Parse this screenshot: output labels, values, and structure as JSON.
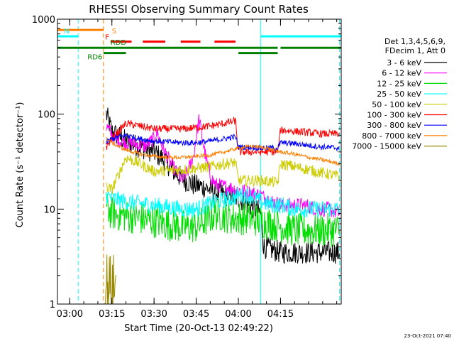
{
  "chart_data": {
    "type": "line",
    "title": "RHESSI Observing Summary Count Rates",
    "xlabel": "Start Time (20-Oct-13 02:49:22)",
    "ylabel": "Count Rate (s⁻¹ detector⁻¹)",
    "yscale": "log",
    "ylim": [
      1,
      1000
    ],
    "xlim_minutes": [
      -4.37,
      96.6
    ],
    "x_tick_labels": [
      "03:00",
      "03:15",
      "03:30",
      "03:45",
      "04:00",
      "04:15"
    ],
    "x_tick_minutes": [
      0,
      15,
      30,
      45,
      60,
      75
    ],
    "y_tick_labels": [
      "1",
      "10",
      "100",
      "1000"
    ],
    "y_tick_values": [
      1,
      10,
      100,
      1000
    ],
    "timestamp": "23-Oct-2021 07:40",
    "legend": {
      "header": [
        "Det 1,3,4,5,6,9,",
        "FDecim 1, Att 0"
      ],
      "entries": [
        {
          "label": "3 - 6 keV",
          "color": "#000000"
        },
        {
          "label": "6 - 12 keV",
          "color": "#ff00ff"
        },
        {
          "label": "12 - 25 keV",
          "color": "#00dd00"
        },
        {
          "label": "25 - 50 keV",
          "color": "#00ffff"
        },
        {
          "label": "50 - 100 keV",
          "color": "#cccc00"
        },
        {
          "label": "100 - 300 keV",
          "color": "#ff0000"
        },
        {
          "label": "300 - 800 keV",
          "color": "#0000ff"
        },
        {
          "label": "800 - 7000 keV",
          "color": "#ff8000"
        },
        {
          "label": "7000 - 15000 keV",
          "color": "#998800"
        }
      ]
    },
    "flag_bars": [
      {
        "label": "S",
        "color": "#ff8000",
        "value": 770,
        "segments": [
          [
            -4.37,
            12
          ]
        ]
      },
      {
        "label": "N",
        "color": "#00ffff",
        "value": 660,
        "segments": [
          [
            -4.37,
            3
          ],
          [
            68,
            96.6
          ]
        ]
      },
      {
        "label": "F",
        "color": "#ff0000",
        "value": 580,
        "segments": [
          [
            14.5,
            22
          ],
          [
            26,
            34
          ],
          [
            39.5,
            46.5
          ],
          [
            51.5,
            59
          ]
        ]
      },
      {
        "label": "RDD",
        "color": "#008000",
        "value": 500,
        "segments": [
          [
            -4.37,
            60
          ],
          [
            60,
            74
          ],
          [
            75,
            96.6
          ]
        ]
      },
      {
        "label": "RD6",
        "color": "#008000",
        "value": 440,
        "segments": [
          [
            12,
            20
          ],
          [
            60,
            74
          ]
        ]
      }
    ],
    "vlines": [
      {
        "minute": -4.37,
        "color": "#00ffff",
        "style": "solid"
      },
      {
        "minute": 3,
        "color": "#00ffff",
        "style": "dashed"
      },
      {
        "minute": 12,
        "color": "#ff8000",
        "style": "dashed"
      },
      {
        "minute": 68,
        "color": "#00ffff",
        "style": "solid"
      },
      {
        "minute": 96,
        "color": "#00ffff",
        "style": "dashed"
      }
    ],
    "series": [
      {
        "name": "3 - 6 keV",
        "color": "#000000",
        "start": 13,
        "end": 96,
        "noise": 0.12,
        "x": [
          13,
          15,
          20,
          25,
          30,
          34,
          37,
          40,
          44,
          48,
          52,
          56,
          60,
          64,
          68,
          69,
          75,
          85,
          96
        ],
        "y": [
          100,
          65,
          52,
          45,
          40,
          32,
          25,
          21,
          18,
          17,
          15,
          14,
          13,
          11,
          9,
          4,
          3.5,
          3.5,
          3.5
        ]
      },
      {
        "name": "6 - 12 keV",
        "color": "#ff00ff",
        "start": 13,
        "end": 96,
        "noise": 0.08,
        "x": [
          13,
          16,
          20,
          24,
          27,
          30,
          31,
          33,
          36,
          40,
          42,
          44,
          46,
          48,
          50,
          52,
          56,
          60,
          64,
          68,
          72,
          76,
          80,
          84,
          88,
          92,
          96
        ],
        "y": [
          75,
          55,
          50,
          48,
          46,
          55,
          65,
          45,
          30,
          20,
          25,
          35,
          90,
          40,
          22,
          18,
          17,
          16,
          15,
          14,
          12,
          11,
          11,
          11,
          10,
          10,
          9
        ]
      },
      {
        "name": "12 - 25 keV",
        "color": "#00dd00",
        "start": 13,
        "end": 96,
        "noise": 0.18,
        "x": [
          13,
          15,
          20,
          30,
          40,
          45,
          52,
          58,
          60,
          64,
          68,
          72,
          76,
          80,
          85,
          90,
          96
        ],
        "y": [
          10,
          9,
          8.5,
          7.5,
          6.5,
          6.5,
          9,
          8,
          8,
          8,
          7.5,
          7,
          6.5,
          6,
          6,
          6,
          6
        ]
      },
      {
        "name": "25 - 50 keV",
        "color": "#00ffff",
        "start": 13,
        "end": 96,
        "noise": 0.09,
        "x": [
          13,
          15,
          20,
          30,
          40,
          45,
          52,
          58,
          60,
          64,
          68,
          72,
          76,
          80,
          85,
          90,
          96
        ],
        "y": [
          14,
          13,
          12,
          11,
          10,
          10,
          12,
          13,
          14,
          14,
          12,
          11,
          11,
          10,
          10,
          10,
          10
        ]
      },
      {
        "name": "50 - 100 keV",
        "color": "#cccc00",
        "start": 13,
        "end": 96,
        "noise": 0.06,
        "x": [
          13,
          15,
          20,
          25,
          30,
          40,
          45,
          50,
          55,
          59,
          60,
          64,
          68,
          74,
          75,
          80,
          85,
          90,
          96
        ],
        "y": [
          17,
          16,
          35,
          30,
          25,
          26,
          27,
          28,
          30,
          31,
          20,
          20,
          20,
          19,
          30,
          28,
          26,
          24,
          22
        ]
      },
      {
        "name": "100 - 300 keV",
        "color": "#ff0000",
        "start": 13,
        "end": 96,
        "noise": 0.04,
        "x": [
          13,
          15,
          20,
          25,
          30,
          40,
          45,
          50,
          55,
          59,
          60,
          64,
          68,
          74,
          75,
          80,
          85,
          90,
          96
        ],
        "y": [
          45,
          55,
          80,
          75,
          70,
          70,
          72,
          75,
          80,
          85,
          40,
          40,
          40,
          40,
          68,
          66,
          64,
          62,
          62
        ]
      },
      {
        "name": "300 - 800 keV",
        "color": "#0000ff",
        "start": 13,
        "end": 96,
        "noise": 0.03,
        "x": [
          13,
          15,
          20,
          25,
          30,
          40,
          45,
          50,
          55,
          59,
          60,
          64,
          68,
          74,
          75,
          80,
          85,
          90,
          96
        ],
        "y": [
          50,
          55,
          60,
          55,
          52,
          50,
          50,
          52,
          55,
          58,
          45,
          45,
          44,
          44,
          50,
          49,
          47,
          45,
          44
        ]
      },
      {
        "name": "800 - 7000 keV",
        "color": "#ff8000",
        "start": 13,
        "end": 96,
        "noise": 0.02,
        "x": [
          13,
          16,
          20,
          25,
          30,
          35,
          40,
          45,
          50,
          55,
          60,
          65,
          70,
          75,
          80,
          85,
          90,
          96
        ],
        "y": [
          55,
          48,
          42,
          38,
          36,
          35,
          35,
          36,
          37,
          40,
          44,
          46,
          44,
          40,
          38,
          35,
          33,
          30
        ]
      },
      {
        "name": "7000 - 15000 keV",
        "color": "#998800",
        "start": 12.5,
        "end": 16.5,
        "noise": 0.35,
        "x": [
          12.5,
          14,
          16.5
        ],
        "y": [
          1.7,
          1.6,
          1.5
        ]
      }
    ]
  }
}
